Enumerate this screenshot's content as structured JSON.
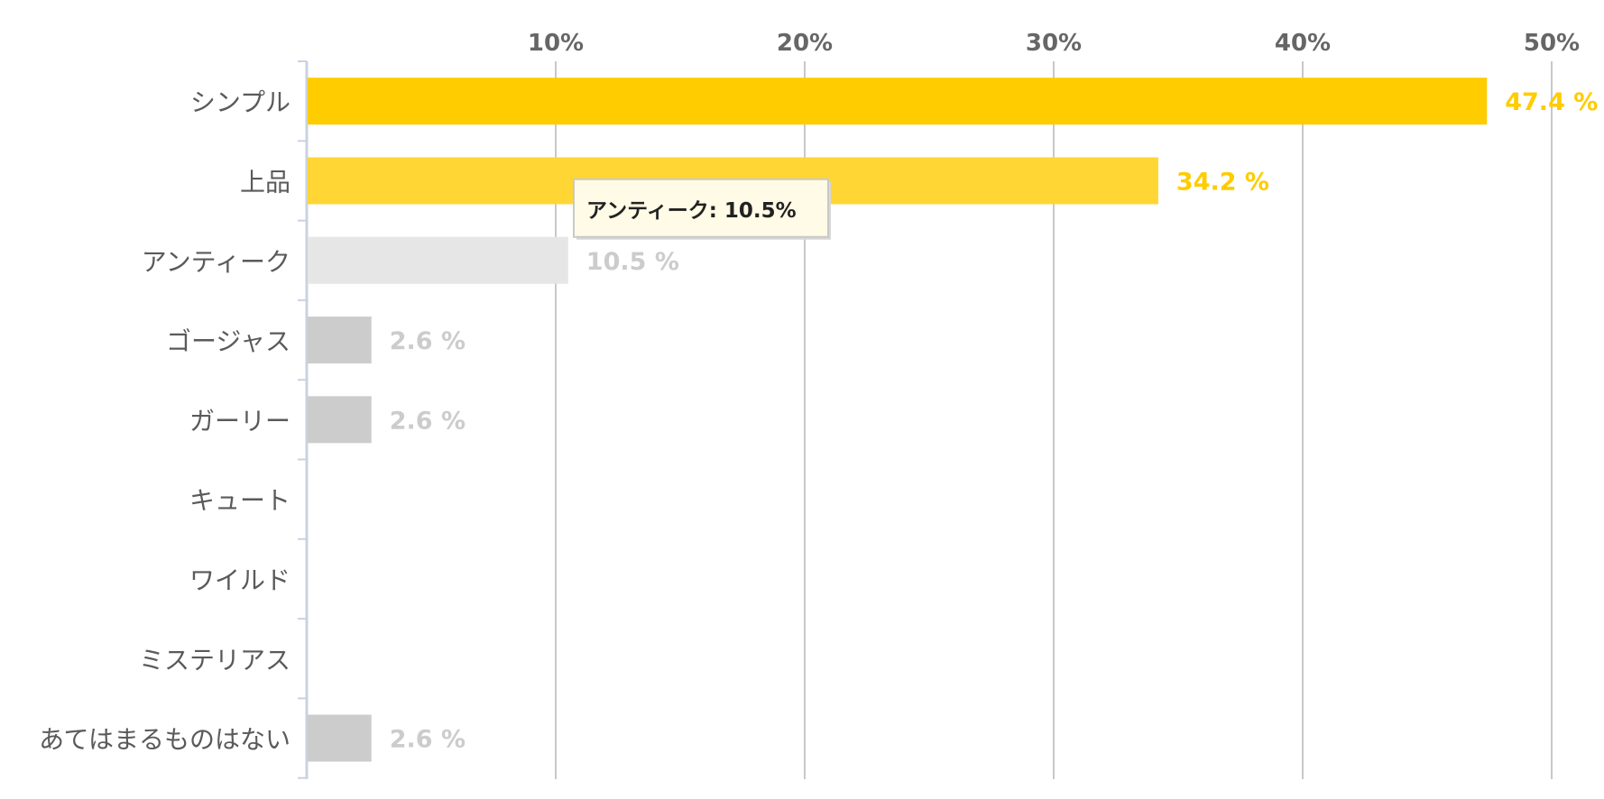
{
  "chart_data": {
    "type": "bar",
    "orientation": "horizontal",
    "categories": [
      "シンプル",
      "上品",
      "アンティーク",
      "ゴージャス",
      "ガーリー",
      "キュート",
      "ワイルド",
      "ミステリアス",
      "あてはまるものはない"
    ],
    "values": [
      47.4,
      34.2,
      10.5,
      2.6,
      2.6,
      0,
      0,
      0,
      2.6
    ],
    "value_labels": [
      "47.4 %",
      "34.2 %",
      "10.5 %",
      "2.6 %",
      "2.6 %",
      "",
      "",
      "",
      "2.6 %"
    ],
    "bar_colors": [
      "#ffcc00",
      "#ffd633",
      "#e6e6e6",
      "#cccccc",
      "#cccccc",
      "#cccccc",
      "#cccccc",
      "#cccccc",
      "#cccccc"
    ],
    "label_colors": [
      "#ffcc00",
      "#ffcc00",
      "#cccccc",
      "#cccccc",
      "#cccccc",
      "#cccccc",
      "#cccccc",
      "#cccccc",
      "#cccccc"
    ],
    "xlim": [
      0,
      50
    ],
    "x_ticks": [
      10,
      20,
      30,
      40,
      50
    ],
    "x_tick_labels": [
      "10%",
      "20%",
      "30%",
      "40%",
      "50%"
    ],
    "x_axis_position": "top",
    "grid": true,
    "title": "",
    "xlabel": "",
    "ylabel": "",
    "tooltip": {
      "text": "アンティーク: 10.5%",
      "category_index": 2
    }
  }
}
